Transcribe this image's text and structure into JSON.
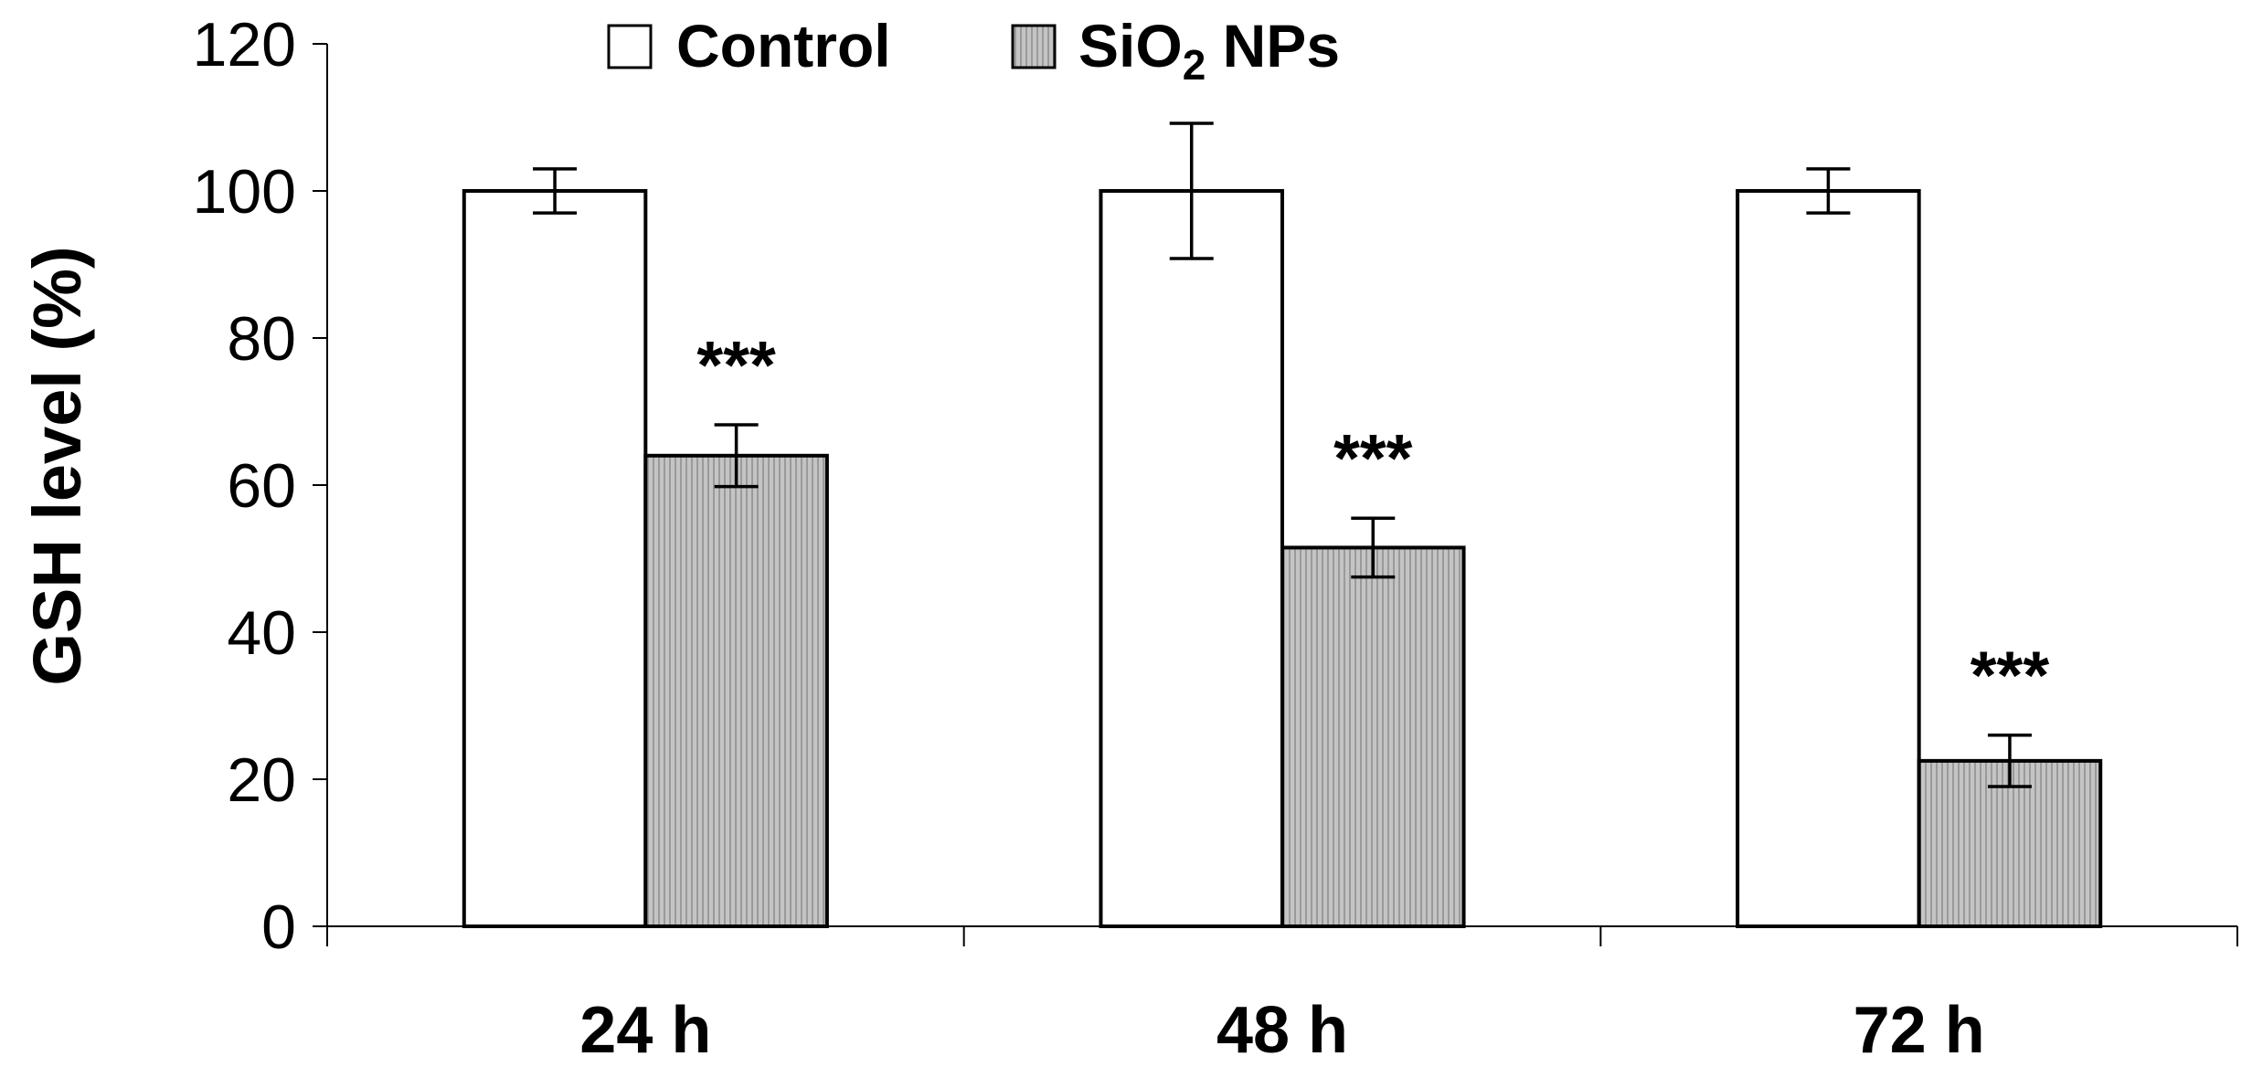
{
  "chart_data": {
    "type": "bar",
    "title": "",
    "xlabel": "",
    "ylabel": "GSH level (%)",
    "ylim": [
      0,
      120
    ],
    "yticks": [
      0,
      20,
      40,
      60,
      80,
      100,
      120
    ],
    "grid": false,
    "legend_position": "top",
    "categories": [
      "24 h",
      "48 h",
      "72 h"
    ],
    "series": [
      {
        "name": "Control",
        "color": "#ffffff",
        "values": [
          100,
          100,
          100
        ],
        "errors": [
          3,
          9.2,
          3
        ],
        "significance": [
          "",
          "",
          ""
        ]
      },
      {
        "name_main": "SiO",
        "name_sub": "2",
        "name_rest": " NPs",
        "color": "#b8b8b8",
        "values": [
          64,
          51.5,
          22.5
        ],
        "errors": [
          4.2,
          4,
          3.5
        ],
        "significance": [
          "***",
          "***",
          "***"
        ]
      }
    ]
  }
}
